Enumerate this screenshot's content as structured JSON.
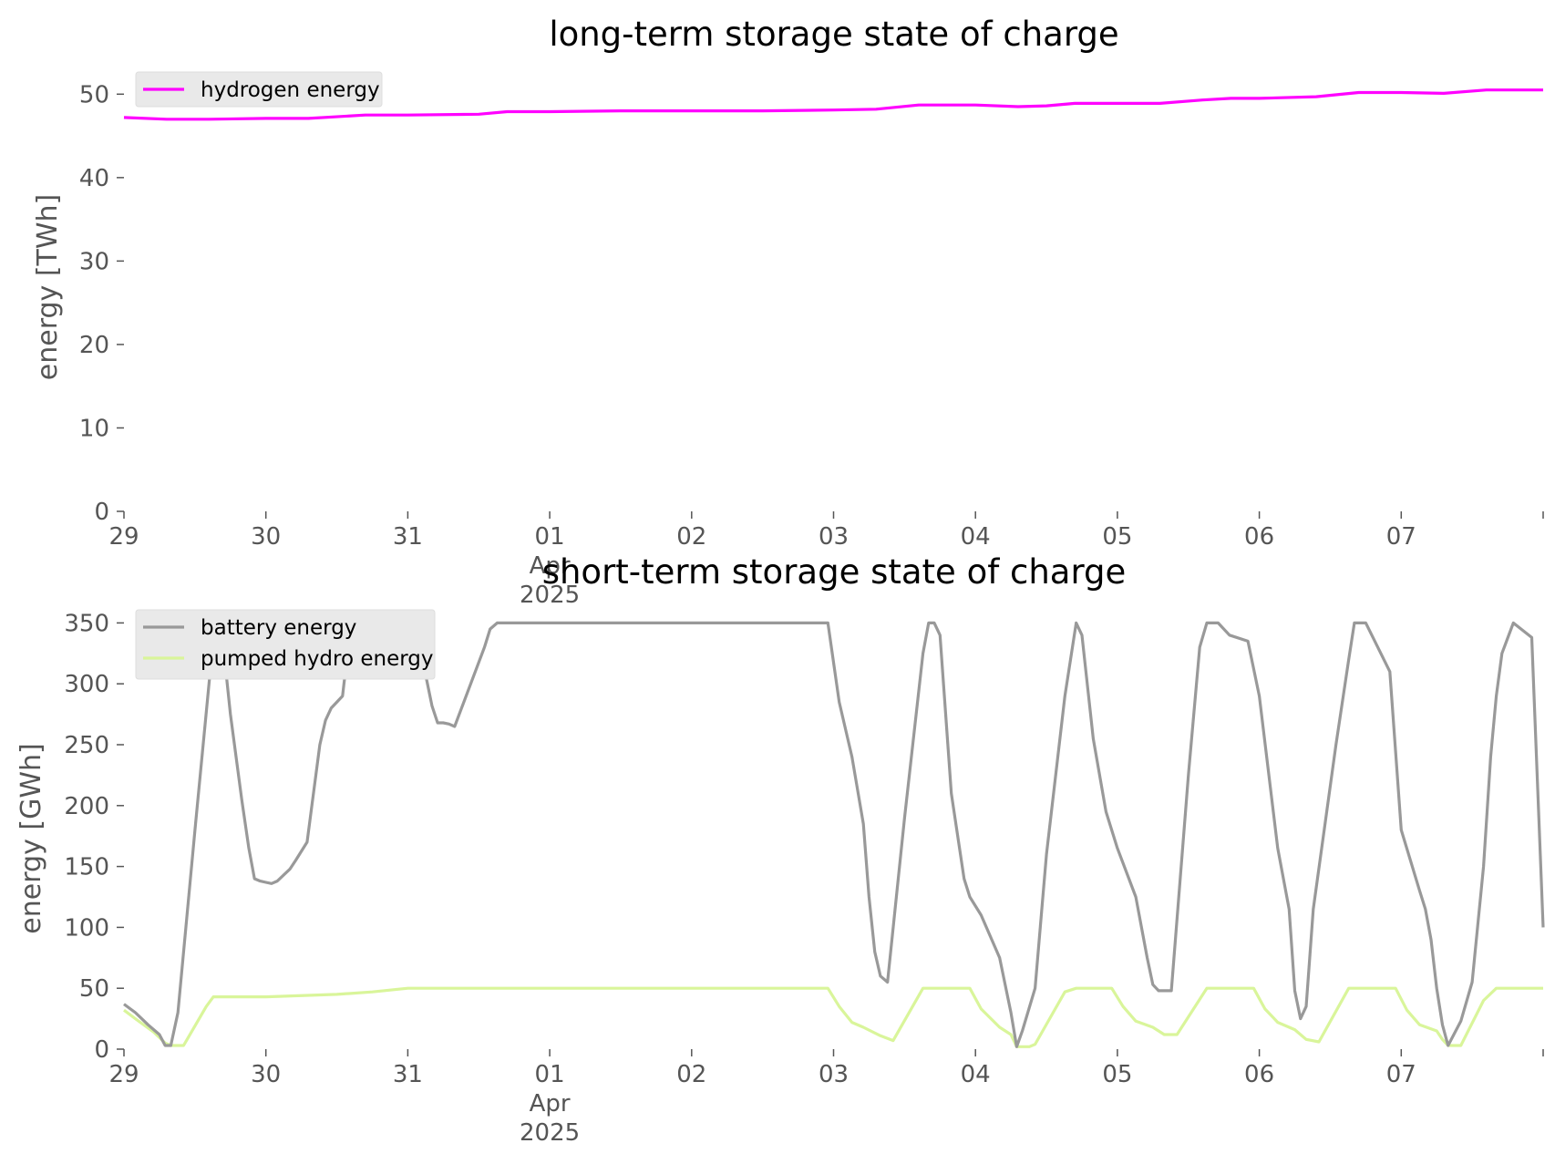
{
  "chart_data": [
    {
      "type": "line",
      "title": "long-term storage state of charge",
      "xlabel": "",
      "ylabel": "energy [TWh]",
      "ylim": [
        0,
        52
      ],
      "yticks": [
        0,
        10,
        20,
        30,
        40,
        50
      ],
      "xlim": [
        0,
        10
      ],
      "xticks": [
        {
          "x": 0,
          "label": "29"
        },
        {
          "x": 1,
          "label": "30"
        },
        {
          "x": 2,
          "label": "31"
        },
        {
          "x": 3,
          "label": "01",
          "sub": "Apr",
          "sub2": "2025"
        },
        {
          "x": 4,
          "label": "02"
        },
        {
          "x": 5,
          "label": "03"
        },
        {
          "x": 6,
          "label": "04"
        },
        {
          "x": 7,
          "label": "05"
        },
        {
          "x": 8,
          "label": "06"
        },
        {
          "x": 9,
          "label": "07"
        }
      ],
      "grid": false,
      "legend_position": "top-left",
      "series": [
        {
          "name": "hydrogen energy",
          "color": "#ff00ff",
          "x": [
            0,
            0.3,
            0.6,
            1.0,
            1.3,
            1.7,
            2.0,
            2.5,
            2.7,
            3.0,
            3.5,
            4.0,
            4.5,
            5.0,
            5.3,
            5.6,
            5.8,
            6.0,
            6.3,
            6.5,
            6.7,
            7.0,
            7.3,
            7.6,
            7.8,
            8.0,
            8.4,
            8.7,
            9.0,
            9.3,
            9.6,
            10.0
          ],
          "values": [
            47.2,
            47.0,
            47.0,
            47.1,
            47.1,
            47.5,
            47.5,
            47.6,
            47.9,
            47.9,
            48.0,
            48.0,
            48.0,
            48.1,
            48.2,
            48.7,
            48.7,
            48.7,
            48.5,
            48.6,
            48.9,
            48.9,
            48.9,
            49.3,
            49.5,
            49.5,
            49.7,
            50.2,
            50.2,
            50.1,
            50.5,
            50.5
          ]
        }
      ]
    },
    {
      "type": "line",
      "title": "short-term storage state of charge",
      "xlabel": "",
      "ylabel": "energy [GWh]",
      "ylim": [
        0,
        375
      ],
      "yticks": [
        0,
        50,
        100,
        150,
        200,
        250,
        300,
        350
      ],
      "xlim": [
        0,
        10
      ],
      "xticks": [
        {
          "x": 0,
          "label": "29"
        },
        {
          "x": 1,
          "label": "30"
        },
        {
          "x": 2,
          "label": "31"
        },
        {
          "x": 3,
          "label": "01",
          "sub": "Apr",
          "sub2": "2025"
        },
        {
          "x": 4,
          "label": "02"
        },
        {
          "x": 5,
          "label": "03"
        },
        {
          "x": 6,
          "label": "04"
        },
        {
          "x": 7,
          "label": "05"
        },
        {
          "x": 8,
          "label": "06"
        },
        {
          "x": 9,
          "label": "07"
        }
      ],
      "grid": false,
      "legend_position": "top-left",
      "series": [
        {
          "name": "battery energy",
          "color": "#999999",
          "x": [
            0,
            0.08,
            0.17,
            0.25,
            0.29,
            0.33,
            0.38,
            0.5,
            0.62,
            0.67,
            0.71,
            0.75,
            0.83,
            0.88,
            0.92,
            0.96,
            1.0,
            1.04,
            1.08,
            1.17,
            1.21,
            1.29,
            1.38,
            1.42,
            1.46,
            1.54,
            1.58,
            1.67,
            1.75,
            1.83,
            1.92,
            2.0,
            2.08,
            2.13,
            2.17,
            2.21,
            2.25,
            2.29,
            2.33,
            2.54,
            2.58,
            2.63,
            2.67,
            2.96,
            3.5,
            4.0,
            4.5,
            4.96,
            5.04,
            5.13,
            5.21,
            5.25,
            5.29,
            5.33,
            5.38,
            5.5,
            5.63,
            5.67,
            5.71,
            5.75,
            5.83,
            5.92,
            5.96,
            6.04,
            6.17,
            6.25,
            6.29,
            6.33,
            6.42,
            6.5,
            6.63,
            6.67,
            6.71,
            6.75,
            6.83,
            6.92,
            7.0,
            7.13,
            7.21,
            7.25,
            7.29,
            7.38,
            7.5,
            7.58,
            7.63,
            7.67,
            7.71,
            7.79,
            7.92,
            8.0,
            8.13,
            8.21,
            8.25,
            8.29,
            8.33,
            8.38,
            8.54,
            8.63,
            8.67,
            8.71,
            8.75,
            8.92,
            9.0,
            9.13,
            9.17,
            9.21,
            9.25,
            9.29,
            9.33,
            9.42,
            9.5,
            9.58,
            9.63,
            9.67,
            9.71,
            9.79,
            9.92,
            10.0
          ],
          "values": [
            37,
            30,
            20,
            12,
            3,
            3,
            30,
            180,
            325,
            340,
            320,
            275,
            205,
            165,
            140,
            138,
            137,
            136,
            138,
            148,
            155,
            170,
            250,
            270,
            280,
            290,
            330,
            338,
            345,
            350,
            345,
            338,
            325,
            305,
            282,
            268,
            268,
            267,
            265,
            330,
            345,
            350,
            350,
            350,
            350,
            350,
            350,
            350,
            285,
            240,
            185,
            125,
            80,
            60,
            55,
            190,
            325,
            350,
            350,
            340,
            210,
            140,
            125,
            110,
            75,
            30,
            2,
            15,
            50,
            160,
            290,
            320,
            350,
            340,
            255,
            195,
            165,
            125,
            75,
            53,
            48,
            48,
            225,
            330,
            350,
            350,
            350,
            340,
            335,
            290,
            165,
            115,
            48,
            25,
            35,
            115,
            250,
            320,
            350,
            350,
            350,
            310,
            180,
            130,
            115,
            90,
            50,
            20,
            3,
            23,
            55,
            150,
            240,
            290,
            325,
            350,
            338,
            100
          ]
        },
        {
          "name": "pumped hydro energy",
          "color": "#d9f59a",
          "x": [
            0,
            0.08,
            0.21,
            0.29,
            0.33,
            0.42,
            0.58,
            0.63,
            1.0,
            1.5,
            1.75,
            2.0,
            3.0,
            4.0,
            4.96,
            5.04,
            5.13,
            5.21,
            5.33,
            5.42,
            5.63,
            5.71,
            5.96,
            6.04,
            6.17,
            6.25,
            6.29,
            6.38,
            6.42,
            6.63,
            6.71,
            6.96,
            7.04,
            7.13,
            7.25,
            7.33,
            7.42,
            7.63,
            7.67,
            7.96,
            8.04,
            8.13,
            8.25,
            8.33,
            8.42,
            8.63,
            8.67,
            8.96,
            9.04,
            9.13,
            9.25,
            9.29,
            9.33,
            9.42,
            9.58,
            9.67,
            9.71,
            10.0
          ],
          "values": [
            32,
            25,
            14,
            5,
            3,
            3,
            35,
            43,
            43,
            45,
            47,
            50,
            50,
            50,
            50,
            35,
            22,
            18,
            11,
            7,
            50,
            50,
            50,
            33,
            18,
            12,
            2,
            2,
            4,
            47,
            50,
            50,
            35,
            23,
            18,
            12,
            12,
            50,
            50,
            50,
            33,
            22,
            16,
            8,
            6,
            50,
            50,
            50,
            32,
            20,
            15,
            8,
            3,
            3,
            40,
            50,
            50,
            50
          ]
        }
      ]
    }
  ]
}
